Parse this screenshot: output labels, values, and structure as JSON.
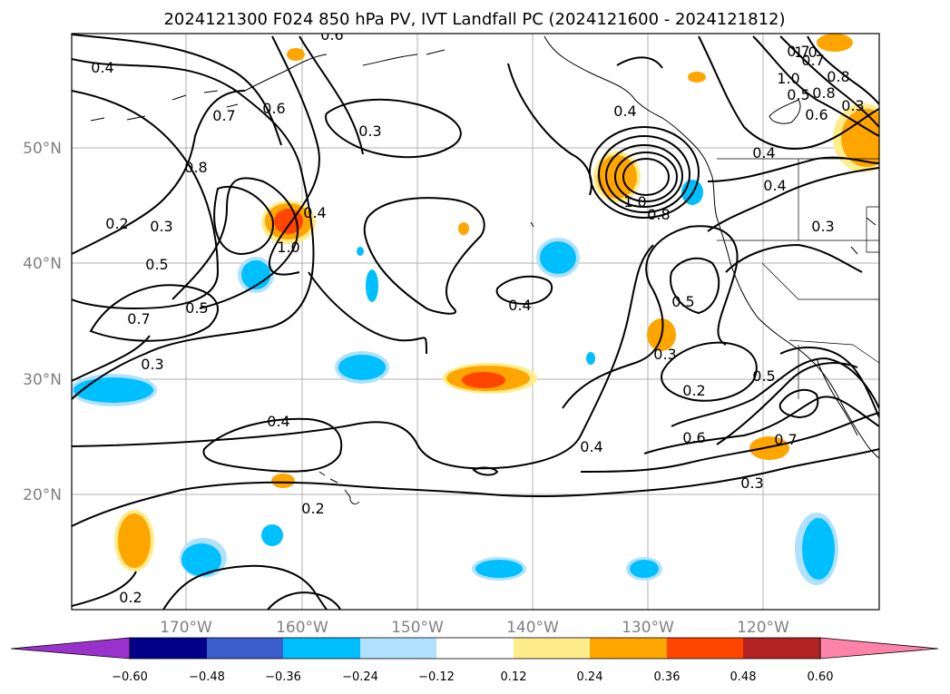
{
  "title": "2024121300 F024 850 hPa PV, IVT Landfall PC (2024121600 - 2024121812)",
  "lat_labels": [
    "50°N",
    "40°N",
    "30°N",
    "20°N"
  ],
  "lon_labels": [
    "170°W",
    "160°W",
    "150°W",
    "140°W",
    "130°W",
    "120°W"
  ],
  "colorbar": {
    "ticks": [
      "−0.60",
      "−0.48",
      "−0.36",
      "−0.24",
      "−0.12",
      "0.12",
      "0.24",
      "0.36",
      "0.48",
      "0.60"
    ],
    "colors": [
      "#9932cc",
      "#00008b",
      "#3a5fcd",
      "#00bfff",
      "#b0e2ff",
      "#ffffff",
      "#ffec8b",
      "#ffa500",
      "#ff4500",
      "#b22222",
      "#ff82ab"
    ]
  },
  "contour_labels": [
    "0.4",
    "0.6",
    "0.7",
    "0.6",
    "0.3",
    "0.8",
    "0.2",
    "0.3",
    "0.4",
    "1.0",
    "0.5",
    "0.7",
    "0.5",
    "0.3",
    "0.4",
    "0.2",
    "0.4",
    "0.2",
    "0.7",
    "0.4",
    "1.0",
    "0.8",
    "1.0",
    "0.8",
    "0.4",
    "0.4",
    "0.5",
    "0.3",
    "0.3",
    "0.2",
    "0.6",
    "0.5",
    "0.7",
    "0.3",
    "0.4",
    "1.0",
    "0.7",
    "0.8",
    "0.5",
    "0.6",
    "0.3"
  ]
}
